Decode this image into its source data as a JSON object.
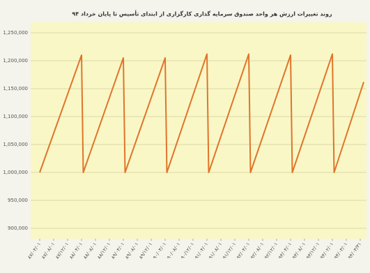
{
  "chart_data": {
    "type": "line",
    "title": "روند تغییرات ارزش هر واحد صندوق سرمایه گذاری کارگزاری از ابتدای تأسیس تا پایان خرداد ۹۴",
    "x": [
      0,
      12,
      12.5,
      24,
      24.5,
      36,
      36.5,
      48,
      48.5,
      60,
      60.5,
      72,
      72.5,
      84,
      84.5,
      93
    ],
    "values": [
      1000000,
      1210000,
      1000000,
      1205000,
      1000000,
      1205000,
      1000000,
      1212000,
      1000000,
      1212000,
      1000000,
      1210000,
      1000000,
      1212000,
      1000000,
      1162000
    ],
    "color": "#e0742a",
    "xlim": [
      0,
      93
    ],
    "xticks": [
      {
        "value": 0,
        "label": "۸۷/۰۴/۰۱"
      },
      {
        "value": 4,
        "label": "۸۷/۰۸/۰۱"
      },
      {
        "value": 8,
        "label": "۸۷/۱۲/۰۱"
      },
      {
        "value": 12,
        "label": "۸۸/۰۴/۰۱"
      },
      {
        "value": 16,
        "label": "۸۸/۰۸/۰۱"
      },
      {
        "value": 20,
        "label": "۸۸/۱۲/۰۱"
      },
      {
        "value": 24,
        "label": "۸۹/۰۴/۰۱"
      },
      {
        "value": 28,
        "label": "۸۹/۰۸/۰۱"
      },
      {
        "value": 32,
        "label": "۸۹/۱۲/۰۱"
      },
      {
        "value": 36,
        "label": "۹۰/۰۴/۰۱"
      },
      {
        "value": 40,
        "label": "۹۰/۰۸/۰۱"
      },
      {
        "value": 44,
        "label": "۹۰/۱۲/۰۱"
      },
      {
        "value": 48,
        "label": "۹۱/۰۴/۰۱"
      },
      {
        "value": 52,
        "label": "۹۱/۰۸/۰۱"
      },
      {
        "value": 56,
        "label": "۹۱/۱۲/۰۱"
      },
      {
        "value": 60,
        "label": "۹۲/۰۴/۰۱"
      },
      {
        "value": 64,
        "label": "۹۲/۰۸/۰۱"
      },
      {
        "value": 68,
        "label": "۹۲/۱۲/۰۱"
      },
      {
        "value": 72,
        "label": "۹۳/۰۴/۰۱"
      },
      {
        "value": 76,
        "label": "۹۳/۰۸/۰۱"
      },
      {
        "value": 80,
        "label": "۹۳/۱۲/۰۱"
      },
      {
        "value": 84,
        "label": "۹۴/۰۲/۰۱"
      },
      {
        "value": 88,
        "label": "۹۴/۰۳/۰۱"
      },
      {
        "value": 92,
        "label": "۹۴/۰۳/۳۱"
      }
    ],
    "ylim": [
      900000,
      1250000
    ],
    "yticks": [
      {
        "value": 900000,
        "label": "900,000"
      },
      {
        "value": 950000,
        "label": "950,000"
      },
      {
        "value": 1000000,
        "label": "1,000,000"
      },
      {
        "value": 1050000,
        "label": "1,050,000"
      },
      {
        "value": 1100000,
        "label": "1,100,000"
      },
      {
        "value": 1150000,
        "label": "1,150,000"
      },
      {
        "value": 1200000,
        "label": "1,200,000"
      },
      {
        "value": 1250000,
        "label": "1,250,000"
      }
    ],
    "grid": true
  }
}
